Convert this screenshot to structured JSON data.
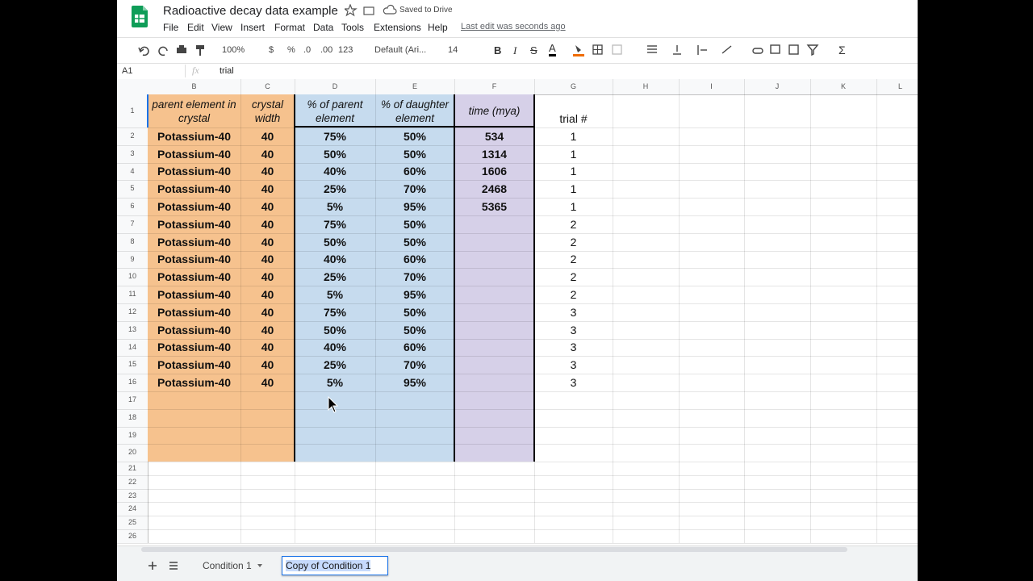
{
  "header": {
    "title": "Radioactive decay data example",
    "save_status": "Saved to Drive",
    "menu": [
      "File",
      "Edit",
      "View",
      "Insert",
      "Format",
      "Data",
      "Tools",
      "Extensions",
      "Help"
    ],
    "last_edit": "Last edit was seconds ago"
  },
  "toolbar": {
    "zoom": "100%",
    "currency": "$",
    "percent": "%",
    "decrease_decimal": ".0",
    "increase_decimal": ".00",
    "number_format": "123",
    "font": "Default (Ari...",
    "font_size": "14",
    "bold": "B",
    "italic": "I",
    "strikethrough": "S",
    "text_color": "A",
    "functions": "Σ"
  },
  "formula_bar": {
    "cell": "A1",
    "fx": "fx",
    "content": "trial"
  },
  "sheet": {
    "columns": [
      "B",
      "C",
      "D",
      "E",
      "F",
      "G",
      "H",
      "I",
      "J",
      "K",
      "L"
    ],
    "row_numbers": [
      "1",
      "2",
      "3",
      "4",
      "5",
      "6",
      "7",
      "8",
      "9",
      "10",
      "11",
      "12",
      "13",
      "14",
      "15",
      "16",
      "17",
      "18",
      "19",
      "20",
      "21",
      "22",
      "23",
      "24",
      "25",
      "26"
    ],
    "header_row": [
      "parent element in crystal",
      "crystal width",
      "% of parent element",
      "% of daughter element",
      "time (mya)",
      "trial #"
    ],
    "rows": [
      [
        "Potassium-40",
        "40",
        "75%",
        "50%",
        "534",
        "1"
      ],
      [
        "Potassium-40",
        "40",
        "50%",
        "50%",
        "1314",
        "1"
      ],
      [
        "Potassium-40",
        "40",
        "40%",
        "60%",
        "1606",
        "1"
      ],
      [
        "Potassium-40",
        "40",
        "25%",
        "70%",
        "2468",
        "1"
      ],
      [
        "Potassium-40",
        "40",
        "5%",
        "95%",
        "5365",
        "1"
      ],
      [
        "Potassium-40",
        "40",
        "75%",
        "50%",
        null,
        "2"
      ],
      [
        "Potassium-40",
        "40",
        "50%",
        "50%",
        null,
        "2"
      ],
      [
        "Potassium-40",
        "40",
        "40%",
        "60%",
        null,
        "2"
      ],
      [
        "Potassium-40",
        "40",
        "25%",
        "70%",
        null,
        "2"
      ],
      [
        "Potassium-40",
        "40",
        "5%",
        "95%",
        null,
        "2"
      ],
      [
        "Potassium-40",
        "40",
        "75%",
        "50%",
        null,
        "3"
      ],
      [
        "Potassium-40",
        "40",
        "50%",
        "50%",
        null,
        "3"
      ],
      [
        "Potassium-40",
        "40",
        "40%",
        "60%",
        null,
        "3"
      ],
      [
        "Potassium-40",
        "40",
        "25%",
        "70%",
        null,
        "3"
      ],
      [
        "Potassium-40",
        "40",
        "5%",
        "95%",
        null,
        "3"
      ]
    ]
  },
  "tabs": [
    "Condition 1",
    "Copy of Condition 1"
  ]
}
